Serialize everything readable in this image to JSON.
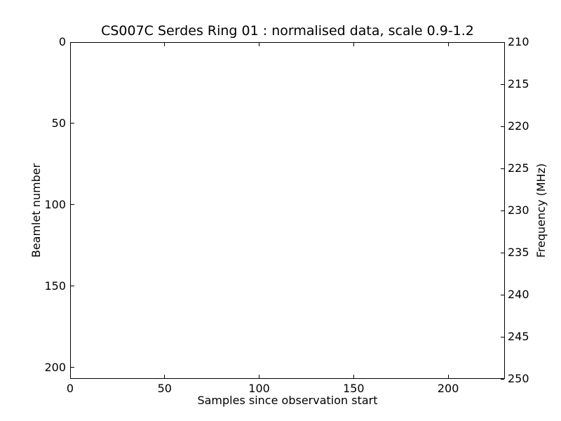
{
  "chart_data": {
    "type": "heatmap",
    "title": "CS007C Serdes Ring 01 : normalised data, scale 0.9-1.2",
    "xlabel": "Samples since observation start",
    "ylabel_left": "Beamlet number",
    "ylabel_right": "Frequency (MHz)",
    "xlim": [
      0,
      230
    ],
    "ylim_left": [
      0,
      207
    ],
    "ylim_right": [
      210,
      250
    ],
    "xticks": [
      0,
      50,
      100,
      150,
      200
    ],
    "yticks_left": [
      0,
      50,
      100,
      150,
      200
    ],
    "yticks_right": [
      210,
      215,
      220,
      225,
      230,
      235,
      240,
      245,
      250
    ],
    "values": [],
    "grid": false,
    "legend": false
  },
  "colors": {
    "foreground": "#000000",
    "background": "#ffffff"
  }
}
